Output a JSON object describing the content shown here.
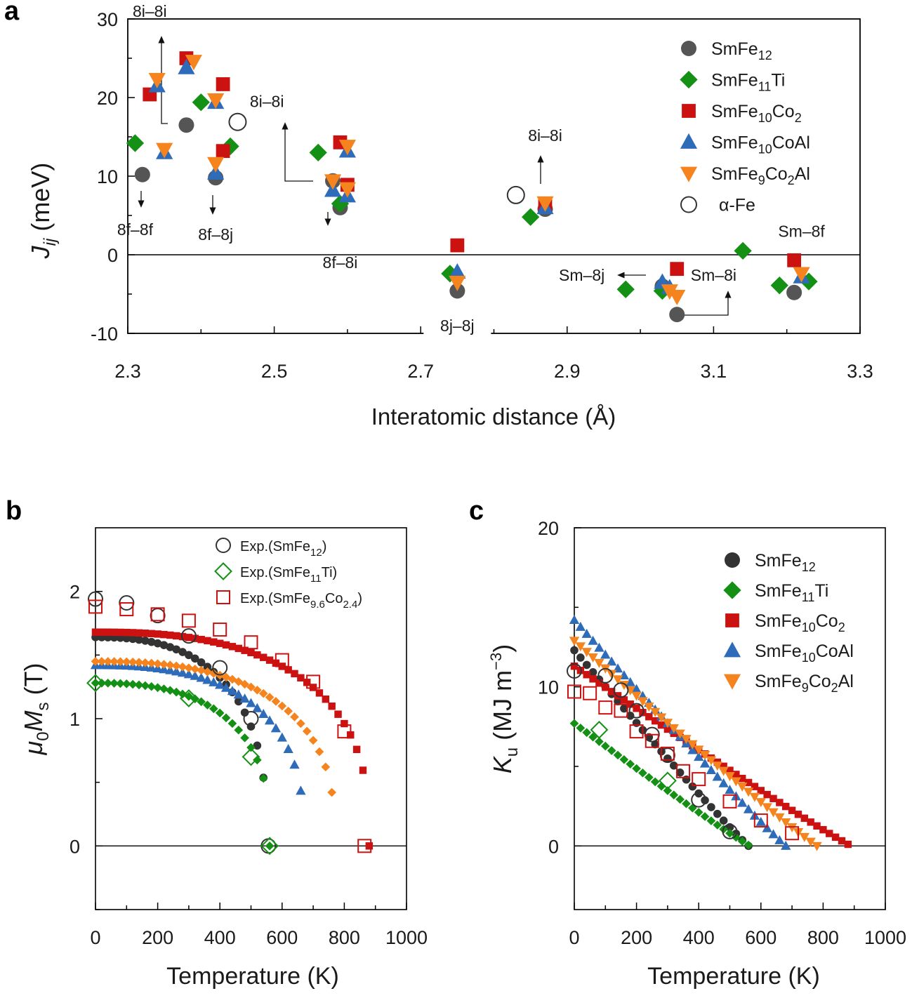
{
  "chart_data": [
    {
      "panel": "a",
      "type": "scatter",
      "xlabel": "Interatomic distance (Å)",
      "ylabel": "J_ij (meV)",
      "xlim": [
        2.3,
        3.3
      ],
      "ylim": [
        -10,
        30
      ],
      "xticks": [
        "2.3",
        "2.5",
        "2.7",
        "2.9",
        "3.1",
        "3.3"
      ],
      "yticks": [
        "-10",
        "0",
        "10",
        "20",
        "30"
      ],
      "legend_position": "top-right",
      "series": [
        {
          "name": "SmFe",
          "sub": "12",
          "marker": "circle",
          "color": "#555555",
          "points": [
            [
              2.32,
              10.2
            ],
            [
              2.38,
              16.5
            ],
            [
              2.42,
              9.8
            ],
            [
              2.58,
              9.4
            ],
            [
              2.59,
              6.0
            ],
            [
              2.75,
              -4.6
            ],
            [
              2.87,
              5.8
            ],
            [
              3.03,
              -4.0
            ],
            [
              3.05,
              -7.6
            ],
            [
              3.21,
              -4.8
            ]
          ]
        },
        {
          "name": "SmFe11Ti",
          "parts": [
            [
              "SmFe",
              ""
            ],
            [
              "11",
              "sub"
            ],
            [
              "Ti",
              ""
            ]
          ],
          "marker": "diamond",
          "color": "#149014",
          "points": [
            [
              2.31,
              14.2
            ],
            [
              2.4,
              19.4
            ],
            [
              2.44,
              13.8
            ],
            [
              2.56,
              13.0
            ],
            [
              2.59,
              6.5
            ],
            [
              2.74,
              -2.4
            ],
            [
              2.85,
              4.8
            ],
            [
              2.98,
              -4.4
            ],
            [
              3.03,
              -4.6
            ],
            [
              3.14,
              0.5
            ],
            [
              3.19,
              -3.9
            ],
            [
              3.23,
              -3.4
            ]
          ]
        },
        {
          "name": "SmFe10Co2",
          "parts": [
            [
              "SmFe",
              ""
            ],
            [
              "10",
              "sub"
            ],
            [
              "Co",
              ""
            ],
            [
              "2",
              "sub"
            ]
          ],
          "marker": "square",
          "color": "#cc1111",
          "points": [
            [
              2.33,
              20.4
            ],
            [
              2.38,
              25.0
            ],
            [
              2.43,
              21.7
            ],
            [
              2.43,
              13.2
            ],
            [
              2.59,
              14.3
            ],
            [
              2.6,
              8.9
            ],
            [
              2.75,
              1.2
            ],
            [
              2.87,
              6.5
            ],
            [
              3.05,
              -1.8
            ],
            [
              3.21,
              -0.7
            ]
          ]
        },
        {
          "name": "SmFe10CoAl",
          "parts": [
            [
              "SmFe",
              ""
            ],
            [
              "10",
              "sub"
            ],
            [
              "CoAl",
              ""
            ]
          ],
          "marker": "triangle-up",
          "color": "#2e6bb8",
          "points": [
            [
              2.34,
              21.5
            ],
            [
              2.35,
              13.0
            ],
            [
              2.38,
              23.8
            ],
            [
              2.42,
              19.4
            ],
            [
              2.42,
              10.4
            ],
            [
              2.58,
              8.2
            ],
            [
              2.6,
              7.5
            ],
            [
              2.6,
              13.2
            ],
            [
              2.75,
              -2.2
            ],
            [
              2.87,
              6.0
            ],
            [
              3.03,
              -3.5
            ],
            [
              3.04,
              -4.2
            ],
            [
              3.22,
              -2.8
            ]
          ]
        },
        {
          "name": "SmFe9Co2Al",
          "parts": [
            [
              "SmFe",
              ""
            ],
            [
              "9",
              "sub"
            ],
            [
              "Co",
              ""
            ],
            [
              "2",
              "sub"
            ],
            [
              "Al",
              ""
            ]
          ],
          "marker": "triangle-down",
          "color": "#f5841f",
          "points": [
            [
              2.34,
              22.3
            ],
            [
              2.35,
              13.4
            ],
            [
              2.39,
              24.6
            ],
            [
              2.42,
              19.7
            ],
            [
              2.42,
              11.6
            ],
            [
              2.58,
              9.4
            ],
            [
              2.6,
              8.4
            ],
            [
              2.6,
              13.8
            ],
            [
              2.75,
              -3.5
            ],
            [
              2.87,
              6.6
            ],
            [
              3.04,
              -4.6
            ],
            [
              3.05,
              -5.3
            ],
            [
              3.22,
              -2.4
            ]
          ]
        },
        {
          "name": "α-Fe",
          "marker": "open-circle",
          "color": "#333333",
          "points": [
            [
              2.45,
              16.9
            ],
            [
              2.83,
              7.6
            ]
          ]
        }
      ],
      "annotations": [
        {
          "text": "8i–8i",
          "x": 2.33,
          "y": 31.0
        },
        {
          "text": "8f–8f",
          "x": 2.31,
          "y": 3.2
        },
        {
          "text": "8f–8j",
          "x": 2.42,
          "y": 2.6
        },
        {
          "text": "8i–8i",
          "x": 2.49,
          "y": 19.5
        },
        {
          "text": "8f–8i",
          "x": 2.59,
          "y": -1.0
        },
        {
          "text": "8i–8i",
          "x": 2.87,
          "y": 15.2
        },
        {
          "text": "8j–8j",
          "x": 2.75,
          "y": -9.0
        },
        {
          "text": "Sm–8j",
          "x": 2.92,
          "y": -2.6
        },
        {
          "text": "Sm–8i",
          "x": 3.1,
          "y": -2.6
        },
        {
          "text": "Sm–8f",
          "x": 3.22,
          "y": 3.0
        }
      ]
    },
    {
      "panel": "b",
      "type": "scatter",
      "xlabel": "Temperature (K)",
      "ylabel": "μ0Ms (T)",
      "xlim": [
        0,
        1000
      ],
      "ylim": [
        -0.5,
        2.5
      ],
      "xticks": [
        "0",
        "200",
        "400",
        "600",
        "800",
        "1000"
      ],
      "yticks": [
        "0",
        "1",
        "2"
      ],
      "legend_position": "top-right",
      "calc_series": [
        {
          "name": "SmFe12",
          "marker": "circle",
          "color": "#333333",
          "m0": 1.64,
          "tc": 550
        },
        {
          "name": "SmFe11Ti",
          "marker": "diamond",
          "color": "#149014",
          "m0": 1.28,
          "tc": 560
        },
        {
          "name": "SmFe10Co2",
          "marker": "square",
          "color": "#cc1111",
          "m0": 1.68,
          "tc": 880
        },
        {
          "name": "SmFe10CoAl",
          "marker": "triangle-up",
          "color": "#2e6bb8",
          "m0": 1.42,
          "tc": 670
        },
        {
          "name": "SmFe9Co2Al",
          "marker": "diamond",
          "color": "#f5841f",
          "m0": 1.45,
          "tc": 770
        }
      ],
      "exp_series": [
        {
          "name": "Exp.(SmFe12)",
          "parts": [
            [
              "Exp.(SmFe",
              ""
            ],
            [
              "12",
              "sub"
            ],
            [
              ")",
              ""
            ]
          ],
          "marker": "open-circle",
          "color": "#333333",
          "points": [
            [
              0,
              1.94
            ],
            [
              100,
              1.91
            ],
            [
              200,
              1.81
            ],
            [
              300,
              1.65
            ],
            [
              400,
              1.4
            ],
            [
              500,
              1.0
            ],
            [
              556,
              0.0
            ]
          ]
        },
        {
          "name": "Exp.(SmFe11Ti)",
          "parts": [
            [
              "Exp.(SmFe",
              ""
            ],
            [
              "11",
              "sub"
            ],
            [
              "Ti)",
              ""
            ]
          ],
          "marker": "open-diamond",
          "color": "#149014",
          "points": [
            [
              0,
              1.28
            ],
            [
              300,
              1.16
            ],
            [
              500,
              0.7
            ],
            [
              560,
              0.0
            ]
          ]
        },
        {
          "name": "Exp.(SmFe9.6Co2.4)",
          "parts": [
            [
              "Exp.(SmFe",
              ""
            ],
            [
              "9.6",
              "sub"
            ],
            [
              "Co",
              ""
            ],
            [
              "2.4",
              "sub"
            ],
            [
              ")",
              ""
            ]
          ],
          "marker": "open-square",
          "color": "#cc1111",
          "points": [
            [
              0,
              1.88
            ],
            [
              100,
              1.86
            ],
            [
              200,
              1.82
            ],
            [
              300,
              1.77
            ],
            [
              400,
              1.7
            ],
            [
              500,
              1.6
            ],
            [
              600,
              1.46
            ],
            [
              700,
              1.29
            ],
            [
              800,
              0.9
            ],
            [
              865,
              0.0
            ]
          ]
        }
      ]
    },
    {
      "panel": "c",
      "type": "scatter",
      "xlabel": "Temperature (K)",
      "ylabel": "Ku (MJ m−3)",
      "xlim": [
        0,
        1000
      ],
      "ylim": [
        -4,
        20
      ],
      "xticks": [
        "0",
        "200",
        "400",
        "600",
        "800",
        "1000"
      ],
      "yticks": [
        "0",
        "10",
        "20"
      ],
      "legend_position": "top-right",
      "calc_series": [
        {
          "name": "SmFe12",
          "parts": [
            [
              "SmFe",
              ""
            ],
            [
              "12",
              "sub"
            ]
          ],
          "marker": "circle",
          "color": "#333333",
          "k0": 12.3,
          "tc": 560
        },
        {
          "name": "SmFe11Ti",
          "parts": [
            [
              "SmFe",
              ""
            ],
            [
              "11",
              "sub"
            ],
            [
              "Ti",
              ""
            ]
          ],
          "marker": "diamond",
          "color": "#149014",
          "k0": 7.7,
          "tc": 565
        },
        {
          "name": "SmFe10Co2",
          "parts": [
            [
              "SmFe",
              ""
            ],
            [
              "10",
              "sub"
            ],
            [
              "Co",
              ""
            ],
            [
              "2",
              "sub"
            ]
          ],
          "marker": "square",
          "color": "#cc1111",
          "k0": 11.3,
          "tc": 890
        },
        {
          "name": "SmFe10CoAl",
          "parts": [
            [
              "SmFe",
              ""
            ],
            [
              "10",
              "sub"
            ],
            [
              "CoAl",
              ""
            ]
          ],
          "marker": "triangle-up",
          "color": "#2e6bb8",
          "k0": 14.2,
          "tc": 680
        },
        {
          "name": "SmFe9Co2Al",
          "parts": [
            [
              "SmFe",
              ""
            ],
            [
              "9",
              "sub"
            ],
            [
              "Co",
              ""
            ],
            [
              "2",
              "sub"
            ],
            [
              "Al",
              ""
            ]
          ],
          "marker": "triangle-down",
          "color": "#f5841f",
          "k0": 12.9,
          "tc": 780
        }
      ],
      "exp_series": [
        {
          "name": "Exp.(SmFe12)",
          "marker": "open-circle",
          "color": "#333333",
          "points": [
            [
              0,
              11.0
            ],
            [
              100,
              10.7
            ],
            [
              150,
              9.8
            ],
            [
              200,
              8.5
            ],
            [
              250,
              7.0
            ],
            [
              300,
              5.7
            ],
            [
              400,
              2.9
            ],
            [
              500,
              0.9
            ]
          ]
        },
        {
          "name": "Exp.(SmFe11Ti)",
          "marker": "open-diamond",
          "color": "#149014",
          "points": [
            [
              80,
              7.3
            ],
            [
              300,
              4.1
            ]
          ]
        },
        {
          "name": "Exp.(SmFe9.6Co2.4)",
          "marker": "open-square",
          "color": "#cc1111",
          "points": [
            [
              0,
              9.7
            ],
            [
              50,
              9.6
            ],
            [
              100,
              8.7
            ],
            [
              150,
              8.5
            ],
            [
              200,
              7.2
            ],
            [
              250,
              6.6
            ],
            [
              300,
              5.8
            ],
            [
              350,
              4.7
            ],
            [
              400,
              4.2
            ],
            [
              500,
              2.8
            ],
            [
              600,
              1.6
            ],
            [
              700,
              0.8
            ]
          ]
        }
      ]
    }
  ],
  "panel_letters": {
    "a": "a",
    "b": "b",
    "c": "c"
  }
}
